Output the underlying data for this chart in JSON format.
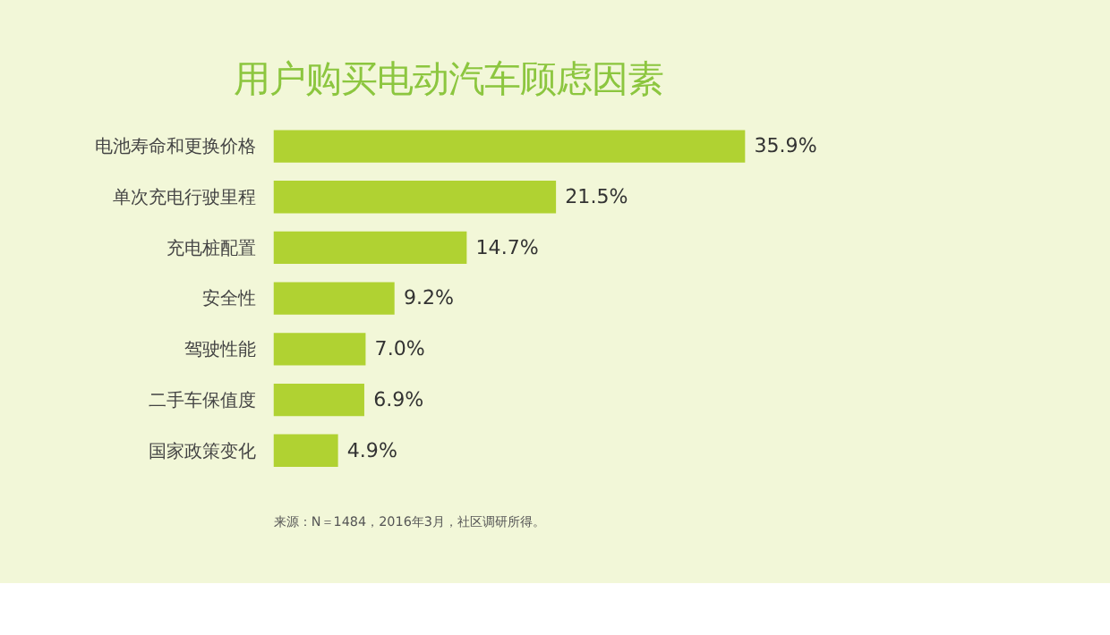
{
  "chart_data": {
    "type": "bar",
    "orientation": "horizontal",
    "title": "用户购买电动汽车顾虑因素",
    "categories": [
      "电池寿命和更换价格",
      "单次充电行驶里程",
      "充电桩配置",
      "安全性",
      "驾驶性能",
      "二手车保值度",
      "国家政策变化"
    ],
    "values": [
      35.9,
      21.5,
      14.7,
      9.2,
      7.0,
      6.9,
      4.9
    ],
    "value_labels": [
      "35.9%",
      "21.5%",
      "14.7%",
      "9.2%",
      "7.0%",
      "6.9%",
      "4.9%"
    ],
    "color": "#b0d232",
    "annotations": [
      "来源：N＝1484，2016年3月，社区调研所得。"
    ]
  }
}
